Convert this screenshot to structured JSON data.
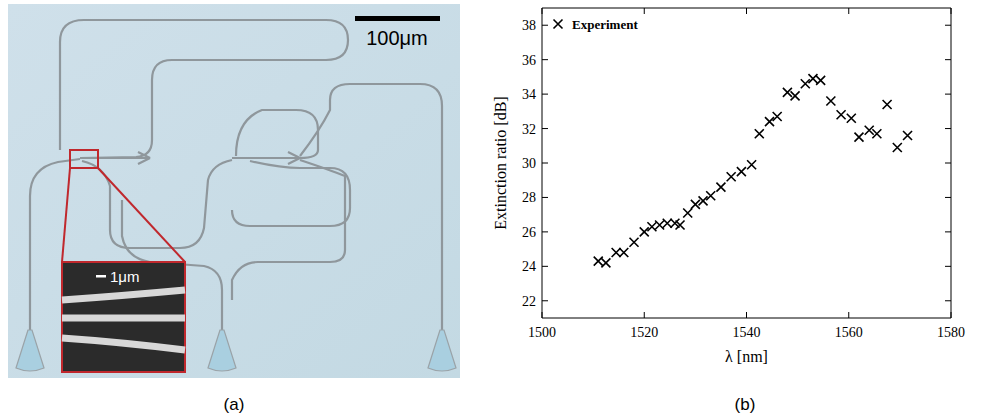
{
  "figure": {
    "panel_labels": [
      "(a)",
      "(b)"
    ]
  },
  "panel_a": {
    "scale_bar": "100μm",
    "inset": {
      "scale_bar": "1μm"
    }
  },
  "chart_data": {
    "type": "scatter",
    "xlabel": "λ [nm]",
    "ylabel": "Extinction ratio [dB]",
    "x": [
      1511,
      1512.5,
      1514.5,
      1516,
      1518,
      1520,
      1521.5,
      1523,
      1524.5,
      1526,
      1527,
      1528.5,
      1530,
      1531.5,
      1533,
      1535,
      1537,
      1539,
      1541,
      1542.5,
      1544.5,
      1546,
      1548,
      1549.5,
      1551.5,
      1553,
      1554.5,
      1556.5,
      1558.5,
      1560.5,
      1562,
      1564,
      1565.5,
      1567.5,
      1569.5,
      1571.5
    ],
    "series": [
      {
        "name": "Experiment",
        "color": "#000000",
        "marker": "x",
        "values": [
          24.3,
          24.2,
          24.8,
          24.8,
          25.4,
          26.0,
          26.3,
          26.4,
          26.5,
          26.5,
          26.4,
          27.1,
          27.6,
          27.8,
          28.1,
          28.6,
          29.2,
          29.5,
          29.9,
          31.7,
          32.4,
          32.7,
          34.1,
          33.9,
          34.6,
          34.9,
          34.8,
          33.6,
          32.8,
          32.6,
          31.5,
          31.9,
          31.7,
          33.4,
          30.9,
          31.6
        ]
      }
    ],
    "xlim": [
      1500,
      1580
    ],
    "xticks": [
      1500,
      1520,
      1540,
      1560,
      1580
    ],
    "ylim": [
      21,
      39
    ],
    "yticks": [
      22,
      24,
      26,
      28,
      30,
      32,
      34,
      36,
      38
    ],
    "grid": false,
    "legend": "upper left"
  }
}
